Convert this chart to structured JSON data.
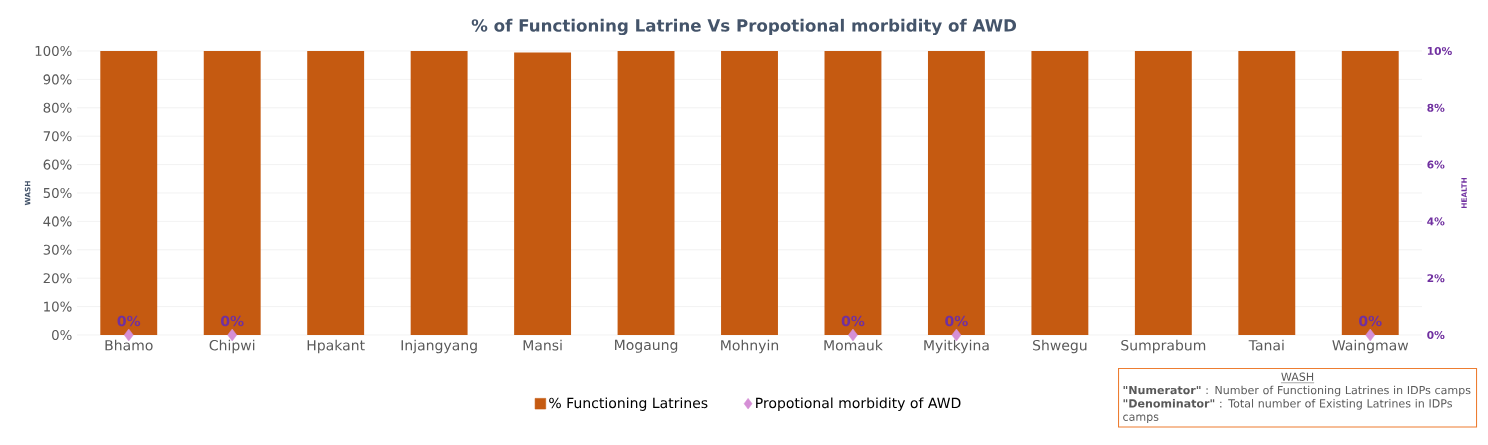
{
  "chart_data": {
    "type": "bar",
    "title": "% of Functioning Latrine Vs Propotional morbidity of AWD",
    "ylabel": "WASH",
    "y2label": "HEALTH",
    "categories": [
      "Bhamo",
      "Chipwi",
      "Hpakant",
      "Injangyang",
      "Mansi",
      "Mogaung",
      "Mohnyin",
      "Momauk",
      "Myitkyina",
      "Shwegu",
      "Sumprabum",
      "Tanai",
      "Waingmaw"
    ],
    "series": [
      {
        "name": "% Functioning Latrines",
        "color": "#c55a11",
        "values": [
          100,
          100,
          100,
          100,
          99.5,
          100,
          100,
          100,
          100,
          100,
          100,
          100,
          100
        ]
      },
      {
        "name": "Propotional morbidity of AWD",
        "type": "scatter",
        "axis": "y2",
        "marker": "diamond",
        "color": "#d58fd6",
        "values": [
          0,
          0,
          null,
          null,
          null,
          null,
          null,
          0,
          0,
          null,
          null,
          null,
          0
        ],
        "value_labels": [
          "0%",
          "0%",
          null,
          null,
          null,
          null,
          null,
          "0%",
          "0%",
          null,
          null,
          null,
          "0%"
        ]
      }
    ],
    "ylim": [
      0,
      100
    ],
    "yticks": [
      {
        "value": 0,
        "label": "0%"
      },
      {
        "value": 10,
        "label": "10%"
      },
      {
        "value": 20,
        "label": "20%"
      },
      {
        "value": 30,
        "label": "30%"
      },
      {
        "value": 40,
        "label": "40%"
      },
      {
        "value": 50,
        "label": "50%"
      },
      {
        "value": 60,
        "label": "60%"
      },
      {
        "value": 70,
        "label": "70%"
      },
      {
        "value": 80,
        "label": "80%"
      },
      {
        "value": 90,
        "label": "90%"
      },
      {
        "value": 100,
        "label": "100%"
      }
    ],
    "y2lim": [
      0,
      10
    ],
    "y2ticks": [
      {
        "value": 0,
        "label": "0%"
      },
      {
        "value": 2,
        "label": "2%"
      },
      {
        "value": 4,
        "label": "4%"
      },
      {
        "value": 6,
        "label": "6%"
      },
      {
        "value": 8,
        "label": "8%"
      },
      {
        "value": 10,
        "label": "10%"
      }
    ],
    "grid": "y",
    "legend": "bottom",
    "annotations": [
      "WASH",
      "**\"Numerator\"** : Number of Functioning Latrines in IDPs camps",
      "**\"Denominator\"** : Total number of Existing Latrines in IDPs camps"
    ]
  }
}
